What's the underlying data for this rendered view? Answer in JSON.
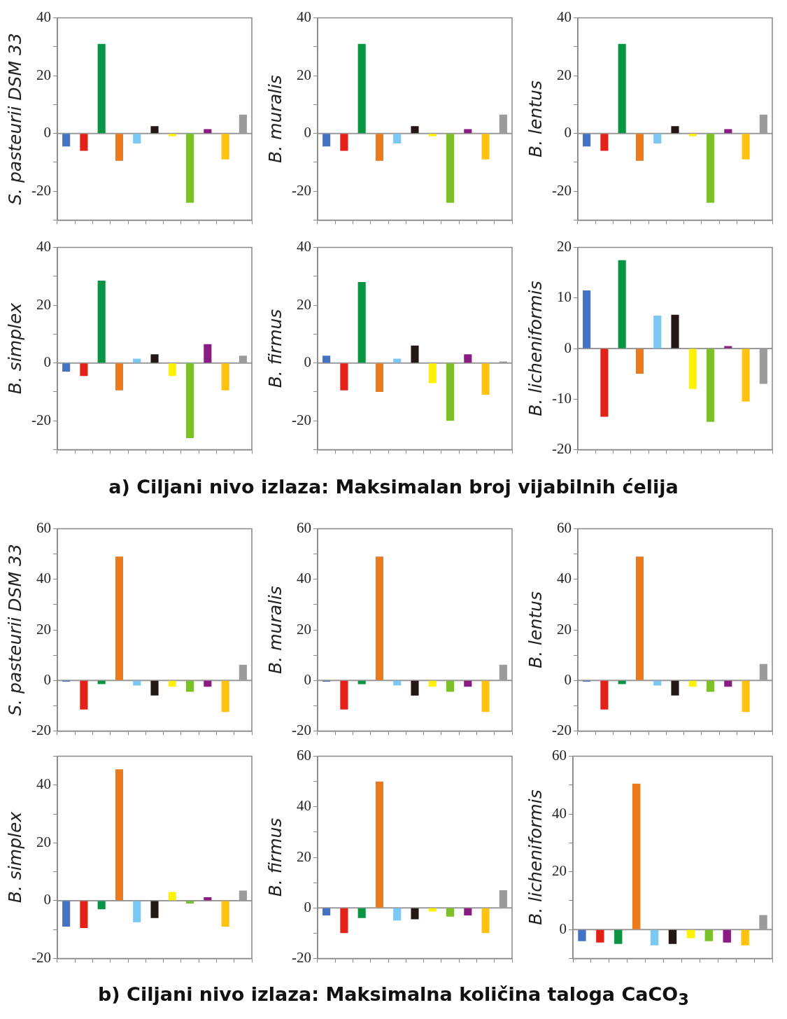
{
  "chart_data": [
    {
      "type": "bar",
      "ylabel": "S. pasteurii DSM 33",
      "categories": [
        null,
        null,
        null,
        null,
        null,
        null,
        null,
        null,
        null,
        null,
        null
      ],
      "values": [
        -4.5,
        -6,
        31,
        -9.5,
        -3.5,
        2.5,
        -1,
        -24,
        1.5,
        -9,
        6.5
      ],
      "colors": [
        "#4472c4",
        "#e32119",
        "#0a9444",
        "#ea7a1c",
        "#7cc8f2",
        "#231815",
        "#fff200",
        "#7cc02a",
        "#8b1a82",
        "#ffc20e",
        "#9b9b9b"
      ],
      "ylim": [
        -30,
        40
      ],
      "yticks": [
        {
          "value": -30,
          "label": null
        },
        -20,
        {
          "value": -10,
          "label": null
        },
        0,
        {
          "value": 10,
          "label": null
        },
        20,
        {
          "value": 30,
          "label": null
        },
        40
      ],
      "ref_lines": [
        {
          "axis": "y",
          "value": 0,
          "color": "#999999"
        }
      ],
      "tick_labels": "y",
      "legend": false
    },
    {
      "type": "bar",
      "ylabel": "B. muralis",
      "categories": [
        null,
        null,
        null,
        null,
        null,
        null,
        null,
        null,
        null,
        null,
        null
      ],
      "values": [
        -4.5,
        -6,
        31,
        -9.5,
        -3.5,
        2.5,
        -1,
        -24,
        1.5,
        -9,
        6.5
      ],
      "colors": [
        "#4472c4",
        "#e32119",
        "#0a9444",
        "#ea7a1c",
        "#7cc8f2",
        "#231815",
        "#fff200",
        "#7cc02a",
        "#8b1a82",
        "#ffc20e",
        "#9b9b9b"
      ],
      "ylim": [
        -30,
        40
      ],
      "yticks": [
        {
          "value": -30,
          "label": null
        },
        -20,
        {
          "value": -10,
          "label": null
        },
        0,
        {
          "value": 10,
          "label": null
        },
        20,
        {
          "value": 30,
          "label": null
        },
        40
      ],
      "ref_lines": [
        {
          "axis": "y",
          "value": 0,
          "color": "#999999"
        }
      ],
      "tick_labels": "y",
      "legend": false
    },
    {
      "type": "bar",
      "ylabel": "B. lentus",
      "categories": [
        null,
        null,
        null,
        null,
        null,
        null,
        null,
        null,
        null,
        null,
        null
      ],
      "values": [
        -4.5,
        -6,
        31,
        -9.5,
        -3.5,
        2.5,
        -1,
        -24,
        1.5,
        -9,
        6.5
      ],
      "colors": [
        "#4472c4",
        "#e32119",
        "#0a9444",
        "#ea7a1c",
        "#7cc8f2",
        "#231815",
        "#fff200",
        "#7cc02a",
        "#8b1a82",
        "#ffc20e",
        "#9b9b9b"
      ],
      "ylim": [
        -30,
        40
      ],
      "yticks": [
        {
          "value": -30,
          "label": null
        },
        -20,
        {
          "value": -10,
          "label": null
        },
        0,
        {
          "value": 10,
          "label": null
        },
        20,
        {
          "value": 30,
          "label": null
        },
        40
      ],
      "ref_lines": [
        {
          "axis": "y",
          "value": 0,
          "color": "#999999"
        }
      ],
      "tick_labels": "y",
      "legend": false
    },
    {
      "type": "bar",
      "ylabel": "B. simplex",
      "categories": [
        null,
        null,
        null,
        null,
        null,
        null,
        null,
        null,
        null,
        null,
        null
      ],
      "values": [
        -3,
        -4.5,
        28.5,
        -9.5,
        1.5,
        3,
        -4.5,
        -26,
        6.5,
        -9.5,
        2.5
      ],
      "colors": [
        "#4472c4",
        "#e32119",
        "#0a9444",
        "#ea7a1c",
        "#7cc8f2",
        "#231815",
        "#fff200",
        "#7cc02a",
        "#8b1a82",
        "#ffc20e",
        "#9b9b9b"
      ],
      "ylim": [
        -30,
        40
      ],
      "yticks": [
        {
          "value": -30,
          "label": null
        },
        -20,
        {
          "value": -10,
          "label": null
        },
        0,
        {
          "value": 10,
          "label": null
        },
        20,
        {
          "value": 30,
          "label": null
        },
        40
      ],
      "ref_lines": [
        {
          "axis": "y",
          "value": 0,
          "color": "#999999"
        }
      ],
      "tick_labels": "y",
      "legend": false
    },
    {
      "type": "bar",
      "ylabel": "B. firmus",
      "categories": [
        null,
        null,
        null,
        null,
        null,
        null,
        null,
        null,
        null,
        null,
        null
      ],
      "values": [
        2.5,
        -9.5,
        28,
        -10,
        1.5,
        6,
        -7,
        -20,
        3,
        -11,
        0.5
      ],
      "colors": [
        "#4472c4",
        "#e32119",
        "#0a9444",
        "#ea7a1c",
        "#7cc8f2",
        "#231815",
        "#fff200",
        "#7cc02a",
        "#8b1a82",
        "#ffc20e",
        "#9b9b9b"
      ],
      "ylim": [
        -30,
        40
      ],
      "yticks": [
        {
          "value": -30,
          "label": null
        },
        -20,
        {
          "value": -10,
          "label": null
        },
        0,
        {
          "value": 10,
          "label": null
        },
        20,
        {
          "value": 30,
          "label": null
        },
        40
      ],
      "ref_lines": [
        {
          "axis": "y",
          "value": 0,
          "color": "#999999"
        }
      ],
      "tick_labels": "y",
      "legend": false,
      "annotations": [
        "a) Ciljani nivo izlaza: Maksimalan broj vijabilnih ćelija"
      ]
    },
    {
      "type": "bar",
      "ylabel": "B. licheniformis",
      "categories": [
        null,
        null,
        null,
        null,
        null,
        null,
        null,
        null,
        null,
        null,
        null
      ],
      "values": [
        11.5,
        -13.5,
        17.5,
        -5,
        6.5,
        6.7,
        -8,
        -14.5,
        0.5,
        -10.5,
        -7
      ],
      "colors": [
        "#4472c4",
        "#e32119",
        "#0a9444",
        "#ea7a1c",
        "#7cc8f2",
        "#231815",
        "#fff200",
        "#7cc02a",
        "#8b1a82",
        "#ffc20e",
        "#9b9b9b"
      ],
      "ylim": [
        -20,
        20
      ],
      "yticks": [
        -20,
        -10,
        0,
        10,
        20
      ],
      "ref_lines": [
        {
          "axis": "y",
          "value": 0,
          "color": "#999999"
        }
      ],
      "tick_labels": "y",
      "legend": false
    },
    {
      "type": "bar",
      "ylabel": "S. pasteurii DSM 33",
      "categories": [
        null,
        null,
        null,
        null,
        null,
        null,
        null,
        null,
        null,
        null,
        null
      ],
      "values": [
        -0.5,
        -11.5,
        -1.5,
        49,
        -2,
        -6,
        -2.5,
        -4.5,
        -2.5,
        -12.5,
        6.2
      ],
      "colors": [
        "#4472c4",
        "#e32119",
        "#0a9444",
        "#ea7a1c",
        "#7cc8f2",
        "#231815",
        "#fff200",
        "#7cc02a",
        "#8b1a82",
        "#ffc20e",
        "#9b9b9b"
      ],
      "ylim": [
        -20,
        60
      ],
      "yticks": [
        {
          "value": -20,
          "label": "-20"
        },
        {
          "value": -10,
          "label": null
        },
        0,
        {
          "value": 10,
          "label": null
        },
        20,
        {
          "value": 30,
          "label": null
        },
        40,
        {
          "value": 50,
          "label": null
        },
        60
      ],
      "ref_lines": [
        {
          "axis": "y",
          "value": 0,
          "color": "#999999"
        }
      ],
      "tick_labels": "y",
      "legend": false
    },
    {
      "type": "bar",
      "ylabel": "B. muralis",
      "categories": [
        null,
        null,
        null,
        null,
        null,
        null,
        null,
        null,
        null,
        null,
        null
      ],
      "values": [
        -0.5,
        -11.5,
        -1.5,
        49,
        -2,
        -6,
        -2.5,
        -4.5,
        -2.5,
        -12.5,
        6.2
      ],
      "colors": [
        "#4472c4",
        "#e32119",
        "#0a9444",
        "#ea7a1c",
        "#7cc8f2",
        "#231815",
        "#fff200",
        "#7cc02a",
        "#8b1a82",
        "#ffc20e",
        "#9b9b9b"
      ],
      "ylim": [
        -20,
        60
      ],
      "yticks": [
        -20,
        {
          "value": -10,
          "label": null
        },
        0,
        {
          "value": 10,
          "label": null
        },
        20,
        {
          "value": 30,
          "label": null
        },
        40,
        {
          "value": 50,
          "label": null
        },
        60
      ],
      "ref_lines": [
        {
          "axis": "y",
          "value": 0,
          "color": "#999999"
        }
      ],
      "tick_labels": "y",
      "legend": false
    },
    {
      "type": "bar",
      "ylabel": "B. lentus",
      "categories": [
        null,
        null,
        null,
        null,
        null,
        null,
        null,
        null,
        null,
        null,
        null
      ],
      "values": [
        -0.5,
        -11.5,
        -1.5,
        49,
        -2,
        -6,
        -2.5,
        -4.5,
        -2.5,
        -12.5,
        6.5
      ],
      "colors": [
        "#4472c4",
        "#e32119",
        "#0a9444",
        "#ea7a1c",
        "#7cc8f2",
        "#231815",
        "#fff200",
        "#7cc02a",
        "#8b1a82",
        "#ffc20e",
        "#9b9b9b"
      ],
      "ylim": [
        -20,
        60
      ],
      "yticks": [
        -20,
        {
          "value": -10,
          "label": null
        },
        0,
        {
          "value": 10,
          "label": null
        },
        20,
        {
          "value": 30,
          "label": null
        },
        40,
        {
          "value": 50,
          "label": null
        },
        60
      ],
      "ref_lines": [
        {
          "axis": "y",
          "value": 0,
          "color": "#999999"
        }
      ],
      "tick_labels": "y",
      "legend": false
    },
    {
      "type": "bar",
      "ylabel": "B. simplex",
      "categories": [
        null,
        null,
        null,
        null,
        null,
        null,
        null,
        null,
        null,
        null,
        null
      ],
      "values": [
        -9,
        -9.5,
        -3,
        45.5,
        -7.5,
        -6,
        3,
        -1,
        1.2,
        -9,
        3.5
      ],
      "colors": [
        "#4472c4",
        "#e32119",
        "#0a9444",
        "#ea7a1c",
        "#7cc8f2",
        "#231815",
        "#fff200",
        "#7cc02a",
        "#8b1a82",
        "#ffc20e",
        "#9b9b9b"
      ],
      "ylim": [
        -20,
        50
      ],
      "yticks": [
        -20,
        {
          "value": -10,
          "label": null
        },
        0,
        {
          "value": 10,
          "label": null
        },
        20,
        {
          "value": 30,
          "label": null
        },
        40,
        {
          "value": 50,
          "label": null
        }
      ],
      "ref_lines": [
        {
          "axis": "y",
          "value": 0,
          "color": "#999999"
        }
      ],
      "tick_labels": "y",
      "legend": false
    },
    {
      "type": "bar",
      "ylabel": "B. firmus",
      "categories": [
        null,
        null,
        null,
        null,
        null,
        null,
        null,
        null,
        null,
        null,
        null
      ],
      "values": [
        -3,
        -10,
        -4,
        50,
        -5,
        -4.5,
        -1.5,
        -3.5,
        -3,
        -10,
        7
      ],
      "colors": [
        "#4472c4",
        "#e32119",
        "#0a9444",
        "#ea7a1c",
        "#7cc8f2",
        "#231815",
        "#fff200",
        "#7cc02a",
        "#8b1a82",
        "#ffc20e",
        "#9b9b9b"
      ],
      "ylim": [
        -20,
        60
      ],
      "yticks": [
        -20,
        {
          "value": -10,
          "label": null
        },
        0,
        {
          "value": 10,
          "label": null
        },
        20,
        {
          "value": 30,
          "label": null
        },
        40,
        {
          "value": 50,
          "label": null
        },
        60
      ],
      "ref_lines": [
        {
          "axis": "y",
          "value": 0,
          "color": "#999999"
        }
      ],
      "tick_labels": "y",
      "legend": false,
      "annotations": [
        "b) Ciljani nivo izlaza: Maksimalna količina taloga CaCO$_{3}$"
      ]
    },
    {
      "type": "bar",
      "ylabel": "B. licheniformis",
      "categories": [
        null,
        null,
        null,
        null,
        null,
        null,
        null,
        null,
        null,
        null,
        null
      ],
      "values": [
        -4,
        -4.5,
        -5,
        50.5,
        -5.5,
        -5,
        -3,
        -4,
        -4.5,
        -5.5,
        5
      ],
      "colors": [
        "#4472c4",
        "#e32119",
        "#0a9444",
        "#ea7a1c",
        "#7cc8f2",
        "#231815",
        "#fff200",
        "#7cc02a",
        "#8b1a82",
        "#ffc20e",
        "#9b9b9b"
      ],
      "ylim": [
        -10,
        60
      ],
      "yticks": [
        {
          "value": -10,
          "label": null
        },
        0,
        {
          "value": 10,
          "label": null
        },
        20,
        {
          "value": 30,
          "label": null
        },
        40,
        {
          "value": 50,
          "label": null
        },
        60
      ],
      "ref_lines": [
        {
          "axis": "y",
          "value": 0,
          "color": "#999999"
        }
      ],
      "tick_labels": "y",
      "legend": false
    }
  ]
}
